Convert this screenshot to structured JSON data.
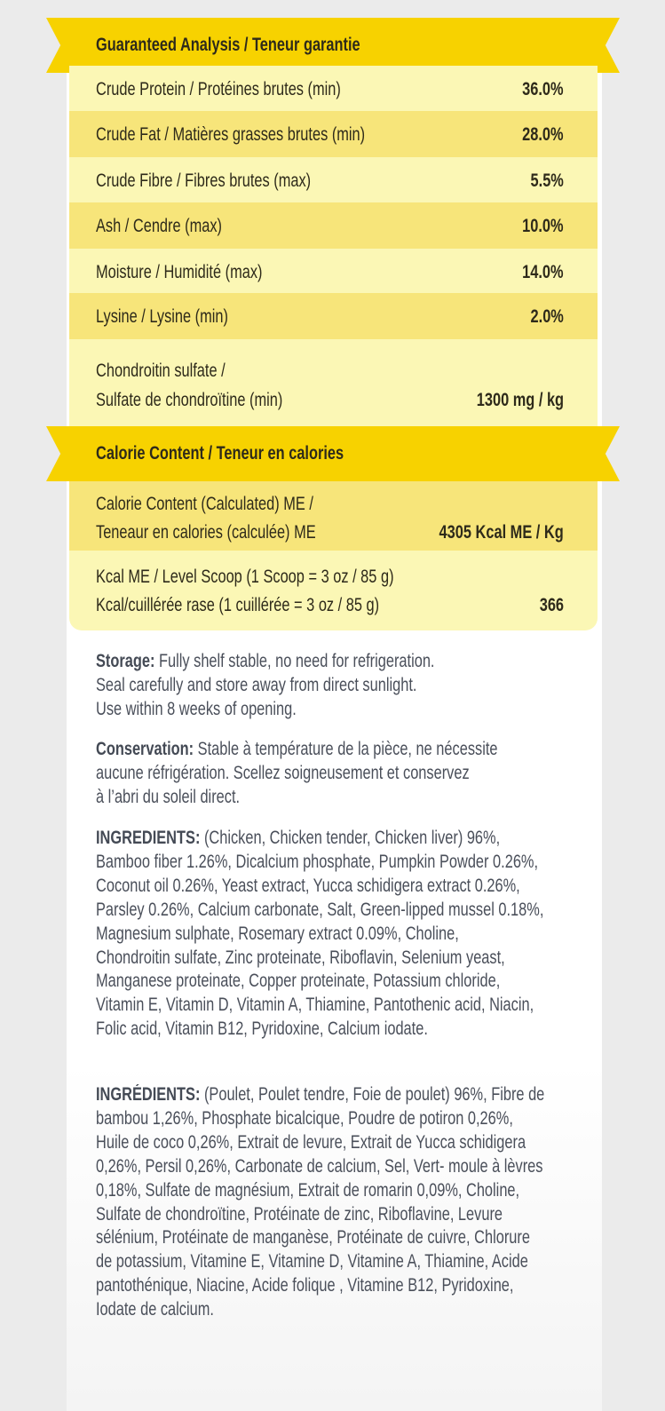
{
  "colors": {
    "banner": "#f7d200",
    "row_light": "#fbf7b5",
    "row_dark": "#f7e57a",
    "text": "#2e2a1a",
    "body_text": "#4a4f5a"
  },
  "analysis": {
    "title": "Guaranteed Analysis / Teneur garantie",
    "rows": [
      {
        "label": "Crude Protein / Protéines brutes  (min)",
        "value": "36.0%"
      },
      {
        "label": "Crude Fat / Matières grasses brutes (min)",
        "value": "28.0%"
      },
      {
        "label": "Crude Fibre / Fibres brutes (max)",
        "value": "5.5%"
      },
      {
        "label": "Ash / Cendre (max)",
        "value": "10.0%"
      },
      {
        "label": "Moisture / Humidité (max)",
        "value": "14.0%"
      },
      {
        "label": "Lysine / Lysine (min)",
        "value": "2.0%"
      },
      {
        "label1": "Chondroitin sulfate /",
        "label2": "Sulfate de chondroïtine (min)",
        "value": "1300 mg / kg"
      }
    ]
  },
  "calorie": {
    "title": "Calorie Content  / Teneur en calories",
    "rows": [
      {
        "label1": "Calorie Content (Calculated) ME /",
        "label2": "Teneaur en calories (calculée) ME",
        "value": "4305 Kcal ME / Kg"
      },
      {
        "label1": "Kcal ME / Level Scoop (1 Scoop = 3 oz / 85 g)",
        "label2": "Kcal/cuillérée rase (1 cuillérée = 3 oz / 85 g)",
        "value": "366"
      }
    ]
  },
  "storage": {
    "label": "Storage:",
    "lines": [
      " Fully shelf stable, no need for refrigeration.",
      "Seal carefully and store away from direct sunlight.",
      "Use within 8 weeks of opening."
    ]
  },
  "conservation": {
    "label": "Conservation:",
    "lines": [
      " Stable à température de la pièce, ne nécessite",
      "aucune réfrigération. Scellez soigneusement et conservez",
      "à l’abri du soleil direct."
    ]
  },
  "ingredients_en": {
    "label": "INGREDIENTS:",
    "lines": [
      " (Chicken, Chicken tender, Chicken liver) 96%,",
      "Bamboo fiber 1.26%, Dicalcium phosphate, Pumpkin Powder 0.26%,",
      "Coconut oil 0.26%, Yeast extract, Yucca schidigera extract 0.26%,",
      "Parsley 0.26%, Calcium carbonate, Salt, Green-lipped mussel 0.18%,",
      "Magnesium sulphate, Rosemary extract 0.09%, Choline,",
      "Chondroitin sulfate, Zinc proteinate, Riboflavin, Selenium yeast,",
      "Manganese proteinate, Copper proteinate, Potassium chloride,",
      "Vitamin E, Vitamin D, Vitamin A, Thiamine, Pantothenic acid, Niacin,",
      "Folic acid, Vitamin B12, Pyridoxine, Calcium iodate."
    ]
  },
  "ingredients_fr": {
    "label": "INGRÉDIENTS:",
    "lines": [
      " (Poulet, Poulet tendre, Foie de poulet) 96%, Fibre de",
      "bambou 1,26%, Phosphate bicalcique, Poudre de potiron 0,26%,",
      "Huile de coco 0,26%, Extrait de levure, Extrait de Yucca schidigera",
      "0,26%, Persil 0,26%, Carbonate de calcium, Sel, Vert- moule à lèvres",
      "0,18%, Sulfate de magnésium, Extrait de romarin 0,09%, Choline,",
      "Sulfate de chondroïtine,  Protéinate de zinc, Riboflavine, Levure",
      "sélénium, Protéinate de manganèse, Protéinate de cuivre, Chlorure",
      "de potassium, Vitamine E, Vitamine D, Vitamine A, Thiamine, Acide",
      "pantothénique, Niacine, Acide folique , Vitamine B12, Pyridoxine,",
      "Iodate de calcium."
    ]
  }
}
